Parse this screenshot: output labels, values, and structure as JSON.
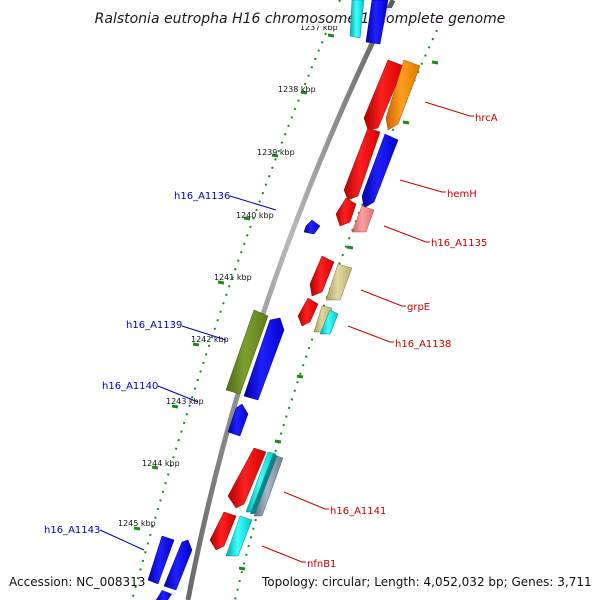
{
  "title": "Ralstonia eutropha H16 chromosome 1, complete genome",
  "accession": "Accession: NC_008313",
  "summary": "Topology: circular; Length: 4,052,032 bp; Genes: 3,711",
  "tick_labels": [
    "1237 kbp",
    "1238 kbp",
    "1239 kbp",
    "1240 kbp",
    "1241 kbp",
    "1242 kbp",
    "1243 kbp",
    "1244 kbp",
    "1245 kbp"
  ],
  "genes_reverse": [
    "h16_A1136",
    "h16_A1139",
    "h16_A1140",
    "h16_A1143"
  ],
  "genes_forward": [
    "hrcA",
    "hemH",
    "h16_A1135",
    "grpE",
    "h16_A1138",
    "h16_A1141",
    "nfnB1"
  ],
  "colors": {
    "backbone": "#8a8a8a",
    "ticks": "#1a8a1a",
    "red": "#ee0000",
    "orange": "#ff8c00",
    "blue": "#0000ee",
    "cyan": "#00e0e0",
    "pink": "#f08080",
    "khaki": "#c8c080",
    "olive": "#6b8e23",
    "slate": "#8899aa",
    "teal": "#008888",
    "label_blue": "#0000b0",
    "label_red": "#c00000"
  }
}
